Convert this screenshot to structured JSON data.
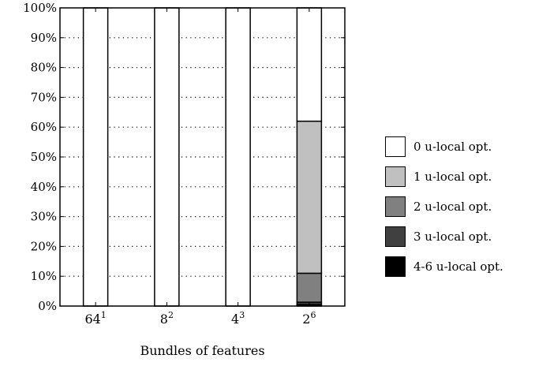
{
  "chart_data": {
    "type": "bar",
    "stacked": true,
    "xlabel": "Bundles of features",
    "categories": [
      {
        "base": "64",
        "exp": "1"
      },
      {
        "base": "8",
        "exp": "2"
      },
      {
        "base": "4",
        "exp": "3"
      },
      {
        "base": "2",
        "exp": "6"
      }
    ],
    "y_ticks": [
      "0%",
      "10%",
      "20%",
      "30%",
      "40%",
      "50%",
      "60%",
      "70%",
      "80%",
      "90%",
      "100%"
    ],
    "ylim": [
      0,
      100
    ],
    "grid": "dotted horizontal",
    "legend_position": "right",
    "series": [
      {
        "name": "4-6 u-local opt.",
        "color": "#000000",
        "values": [
          0,
          0,
          0,
          0.5
        ]
      },
      {
        "name": "3 u-local opt.",
        "color": "#404040",
        "values": [
          0,
          0,
          0,
          0.8
        ]
      },
      {
        "name": "2 u-local opt.",
        "color": "#808080",
        "values": [
          0,
          0,
          0,
          9.7
        ]
      },
      {
        "name": "1 u-local opt.",
        "color": "#c0c0c0",
        "values": [
          0,
          0,
          0,
          51
        ]
      },
      {
        "name": "0 u-local opt.",
        "color": "#ffffff",
        "values": [
          100,
          100,
          100,
          38
        ]
      }
    ]
  }
}
